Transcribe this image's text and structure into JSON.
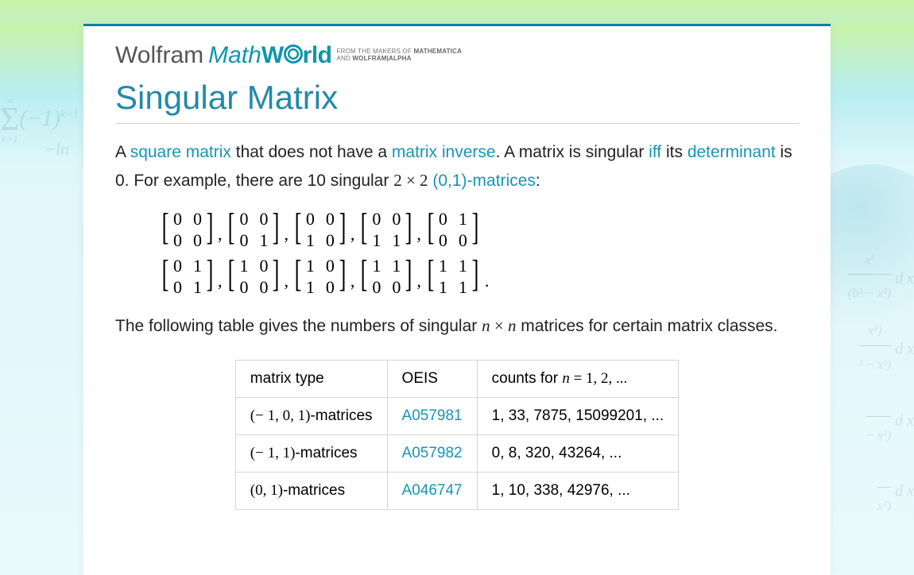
{
  "logo": {
    "word1": "Wolfram",
    "word2a": "Math",
    "word2b": "W",
    "word2d": "rld",
    "tagline_line1_pre": "FROM THE MAKERS OF ",
    "tagline_line1_b": "MATHEMATICA",
    "tagline_line2_pre": "AND ",
    "tagline_line2_b": "WOLFRAM|ALPHA"
  },
  "title": "Singular Matrix",
  "intro": {
    "t1": "A ",
    "link1": "square matrix",
    "t2": " that does not have a ",
    "link2": "matrix inverse",
    "t3": ". A matrix is singular ",
    "link3": "iff",
    "t4": " its ",
    "link4": "determinant",
    "t5": " is 0. For example, there are 10 singular ",
    "math1": "2 × 2",
    "t6": " ",
    "link5": "(0,1)-matrices",
    "t7": ":"
  },
  "matrices": {
    "row1": [
      [
        "0",
        "0",
        "0",
        "0"
      ],
      [
        "0",
        "0",
        "0",
        "1"
      ],
      [
        "0",
        "0",
        "1",
        "0"
      ],
      [
        "0",
        "0",
        "1",
        "1"
      ],
      [
        "0",
        "1",
        "0",
        "0"
      ]
    ],
    "row2": [
      [
        "0",
        "1",
        "0",
        "1"
      ],
      [
        "1",
        "0",
        "0",
        "0"
      ],
      [
        "1",
        "0",
        "1",
        "0"
      ],
      [
        "1",
        "1",
        "0",
        "0"
      ],
      [
        "1",
        "1",
        "1",
        "1"
      ]
    ]
  },
  "para2": {
    "t1": "The following table gives the numbers of singular ",
    "math1": "n × n",
    "t2": " matrices for certain matrix classes."
  },
  "table": {
    "headers": {
      "c1": "matrix type",
      "c2": "OEIS",
      "c3pre": "counts for ",
      "c3math": "n = 1, 2, ..."
    },
    "rows": [
      {
        "type": "(− 1,  0,  1)-matrices",
        "oeis": "A057981",
        "counts": "1, 33, 7875, 15099201, ..."
      },
      {
        "type": "(− 1,  1)-matrices",
        "oeis": "A057982",
        "counts": "0, 8, 320, 43264, ..."
      },
      {
        "type": "(0,  1)-matrices",
        "oeis": "A046747",
        "counts": "1, 10, 338, 42976, ..."
      }
    ]
  },
  "deco": {
    "sigma_top": "∞",
    "sigma": "Σ",
    "sigma_bot": "k=1",
    "sigma_expr": "(−1)",
    "sigma_exp_sup": "k−1",
    "ln": "−ln",
    "int_lines": [
      {
        "num": "x²",
        "den": "(b² − x²)",
        "suf": " d x"
      },
      {
        "num": "x²)",
        "den": "² − x²)",
        "suf": " d x"
      },
      {
        "num": "",
        "den": "− x²)",
        "suf": " d x"
      },
      {
        "num": "",
        "den": "x²)",
        "suf": " d x"
      }
    ]
  }
}
